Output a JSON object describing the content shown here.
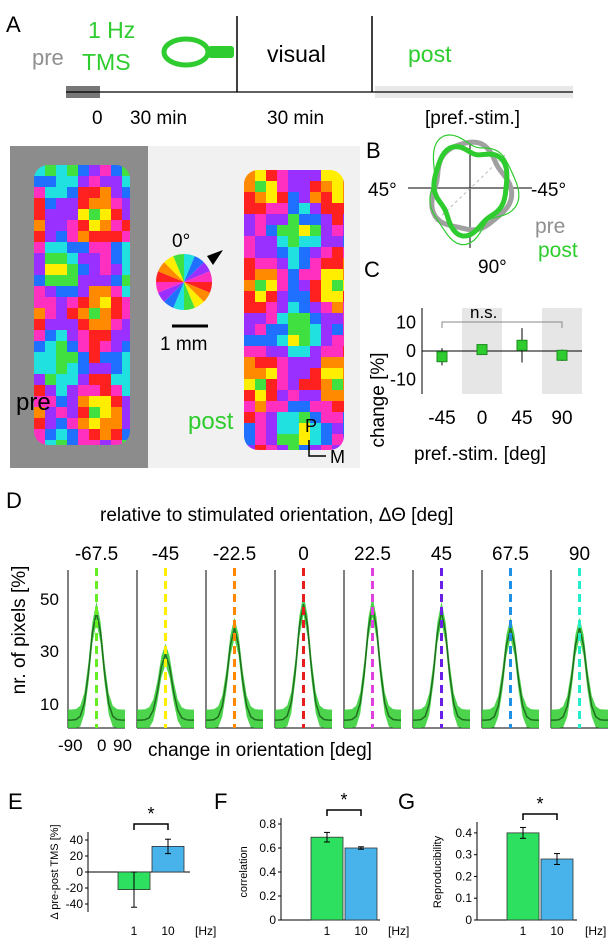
{
  "colors": {
    "green": "#2ecc2e",
    "dark_green": "#1f8a1f",
    "gray": "#909090",
    "blue": "#48b3ea",
    "bar_green": "#2ee060"
  },
  "panelA": {
    "label": "A",
    "pre": "pre",
    "tms_line1": "1 Hz",
    "tms_line2": "TMS",
    "visual": "visual",
    "post": "post",
    "t0": "0",
    "t1": "30 min",
    "t2": "30 min",
    "pref_stim": "[pref.-stim.]"
  },
  "maps": {
    "pre_label": "pre",
    "post_label": "post",
    "zero_deg": "0°",
    "scale": "1 mm",
    "axis_p": "P",
    "axis_m": "M"
  },
  "panelB": {
    "label": "B",
    "left": "45°",
    "right": "-45°",
    "bottom": "90°",
    "pre": "pre",
    "post": "post"
  },
  "panelC": {
    "label": "C",
    "ylabel": "change [%]",
    "xlabel": "pref.-stim. [deg]",
    "sig": "n.s.",
    "chart_data": {
      "type": "bar",
      "categories": [
        "-45",
        "0",
        "45",
        "90"
      ],
      "values": [
        -2,
        0.5,
        2,
        -1.5
      ],
      "errors": [
        3,
        1,
        6,
        2
      ],
      "yticks": [
        "10",
        "0",
        "-10"
      ],
      "ylim": [
        -15,
        15
      ]
    }
  },
  "panelD": {
    "label": "D",
    "title": "relative to stimulated orientation, ΔΘ  [deg]",
    "ylabel": "nr. of pixels [%]",
    "xlabel": "change in orientation [deg]",
    "yticks": [
      "50",
      "30",
      "10"
    ],
    "xticks": [
      "-90",
      "0",
      "90"
    ],
    "chart_data": {
      "type": "line",
      "ylim": [
        0,
        60
      ],
      "panels": [
        {
          "label": "-67.5",
          "color": "#66ee22",
          "peak": 44
        },
        {
          "label": "-45",
          "color": "#ffee00",
          "peak": 28
        },
        {
          "label": "-22.5",
          "color": "#ff8800",
          "peak": 38
        },
        {
          "label": "0",
          "color": "#e61e1e",
          "peak": 47
        },
        {
          "label": "22.5",
          "color": "#e040e0",
          "peak": 46
        },
        {
          "label": "45",
          "color": "#6a1ee6",
          "peak": 44
        },
        {
          "label": "67.5",
          "color": "#1e90e6",
          "peak": 38
        },
        {
          "label": "90",
          "color": "#22eecc",
          "peak": 38
        }
      ]
    }
  },
  "panelE": {
    "label": "E",
    "ylabel": "Δ pre-post TMS [%]",
    "hz": "[Hz]",
    "sig": "*",
    "chart_data": {
      "type": "bar",
      "categories": [
        "1",
        "10"
      ],
      "values": [
        -22,
        32
      ],
      "errors": [
        22,
        9
      ],
      "yticks": [
        "40",
        "20",
        "0",
        "-20",
        "-40"
      ],
      "ylim": [
        -50,
        50
      ]
    }
  },
  "panelF": {
    "label": "F",
    "ylabel": "correlation",
    "hz": "[Hz]",
    "sig": "*",
    "chart_data": {
      "type": "bar",
      "categories": [
        "1",
        "10"
      ],
      "values": [
        0.69,
        0.6
      ],
      "errors": [
        0.04,
        0.01
      ],
      "yticks": [
        "0.8",
        "0.6",
        "0.4",
        "0.2",
        "0"
      ],
      "ylim": [
        0,
        0.85
      ]
    }
  },
  "panelG": {
    "label": "G",
    "ylabel": "Reproducibility",
    "hz": "[Hz]",
    "sig": "*",
    "chart_data": {
      "type": "bar",
      "categories": [
        "1",
        "10"
      ],
      "values": [
        0.4,
        0.28
      ],
      "errors": [
        0.025,
        0.025
      ],
      "yticks": [
        "0.4",
        "0.3",
        "0.2",
        "0.1",
        "0"
      ],
      "ylim": [
        0,
        0.45
      ]
    }
  }
}
